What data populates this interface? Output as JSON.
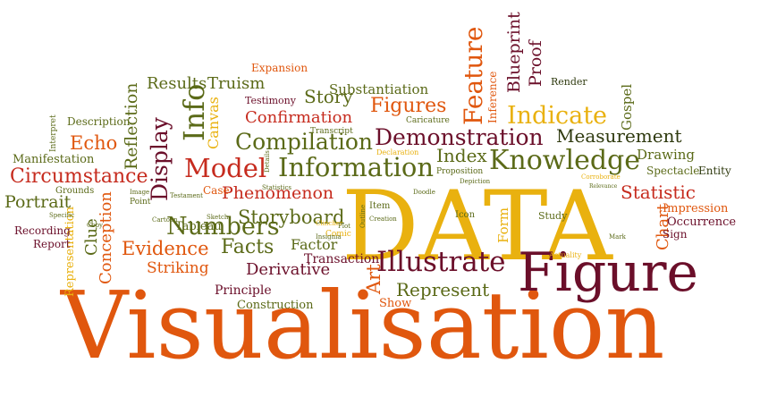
{
  "colors": {
    "orange": "#e0570e",
    "red": "#c62b1e",
    "gold": "#e9b10f",
    "olive": "#5b6a18",
    "maroon": "#6b0f2a",
    "dark": "#2f3a0f"
  },
  "words": [
    {
      "text": "Visualisation",
      "color": "orange"
    },
    {
      "text": "DATA",
      "color": "gold"
    },
    {
      "text": "Figure",
      "color": "maroon"
    },
    {
      "text": "Illustrate",
      "color": "maroon"
    },
    {
      "text": "Knowledge",
      "color": "olive"
    },
    {
      "text": "Information",
      "color": "olive"
    },
    {
      "text": "Demonstration",
      "color": "maroon"
    },
    {
      "text": "Model",
      "color": "red"
    },
    {
      "text": "Indicate",
      "color": "gold"
    },
    {
      "text": "Feature",
      "color": "orange"
    },
    {
      "text": "Blueprint",
      "color": "maroon"
    },
    {
      "text": "Proof",
      "color": "maroon"
    },
    {
      "text": "Measurement",
      "color": "dark"
    },
    {
      "text": "Compilation",
      "color": "olive"
    },
    {
      "text": "Numbers",
      "color": "olive"
    },
    {
      "text": "Facts",
      "color": "olive"
    },
    {
      "text": "Evidence",
      "color": "orange"
    },
    {
      "text": "Storyboard",
      "color": "olive"
    },
    {
      "text": "Phenomenon",
      "color": "red"
    },
    {
      "text": "Statistic",
      "color": "red"
    },
    {
      "text": "Represent",
      "color": "olive"
    },
    {
      "text": "Derivative",
      "color": "maroon"
    },
    {
      "text": "Striking",
      "color": "orange"
    },
    {
      "text": "Circumstance",
      "color": "red"
    },
    {
      "text": "Info",
      "color": "olive"
    },
    {
      "text": "Display",
      "color": "maroon"
    },
    {
      "text": "Reflection",
      "color": "olive"
    },
    {
      "text": "Echo",
      "color": "orange"
    },
    {
      "text": "Figures",
      "color": "orange"
    },
    {
      "text": "Story",
      "color": "olive"
    },
    {
      "text": "Confirmation",
      "color": "red"
    },
    {
      "text": "Results",
      "color": "olive"
    },
    {
      "text": "Truism",
      "color": "olive"
    },
    {
      "text": "Substantiation",
      "color": "olive"
    },
    {
      "text": "Portrait",
      "color": "olive"
    },
    {
      "text": "Conception",
      "color": "orange"
    },
    {
      "text": "Clue",
      "color": "olive"
    },
    {
      "text": "Representation",
      "color": "gold"
    },
    {
      "text": "Canvas",
      "color": "gold"
    },
    {
      "text": "Tableau",
      "color": "olive"
    },
    {
      "text": "Factor",
      "color": "olive"
    },
    {
      "text": "Transaction",
      "color": "maroon"
    },
    {
      "text": "Principle",
      "color": "maroon"
    },
    {
      "text": "Construction",
      "color": "olive"
    },
    {
      "text": "Show",
      "color": "orange"
    },
    {
      "text": "Art",
      "color": "orange"
    },
    {
      "text": "Index",
      "color": "olive"
    },
    {
      "text": "Form",
      "color": "gold"
    },
    {
      "text": "Chart",
      "color": "orange"
    },
    {
      "text": "Gospel",
      "color": "olive"
    },
    {
      "text": "Inference",
      "color": "orange"
    },
    {
      "text": "Drawing",
      "color": "olive"
    },
    {
      "text": "Spectacle",
      "color": "olive"
    },
    {
      "text": "Entity",
      "color": "dark"
    },
    {
      "text": "Impression",
      "color": "orange"
    },
    {
      "text": "Occurrence",
      "color": "maroon"
    },
    {
      "text": "Sign",
      "color": "maroon"
    },
    {
      "text": "Manifestation",
      "color": "olive"
    },
    {
      "text": "Description",
      "color": "olive"
    },
    {
      "text": "Recording",
      "color": "maroon"
    },
    {
      "text": "Report",
      "color": "maroon"
    },
    {
      "text": "Grounds",
      "color": "olive"
    },
    {
      "text": "Expansion",
      "color": "orange"
    },
    {
      "text": "Testimony",
      "color": "maroon"
    },
    {
      "text": "Caricature",
      "color": "olive"
    },
    {
      "text": "Transcript",
      "color": "olive"
    },
    {
      "text": "Render",
      "color": "dark"
    },
    {
      "text": "Proposition",
      "color": "olive"
    },
    {
      "text": "Study",
      "color": "olive"
    },
    {
      "text": "Item",
      "color": "olive"
    },
    {
      "text": "Icon",
      "color": "olive"
    },
    {
      "text": "Case",
      "color": "orange"
    },
    {
      "text": "Point",
      "color": "olive"
    },
    {
      "text": "Comic",
      "color": "gold"
    },
    {
      "text": "Actuality",
      "color": "gold"
    },
    {
      "text": "Declaration",
      "color": "gold"
    },
    {
      "text": "Interpret",
      "color": "olive"
    },
    {
      "text": "Doodle",
      "color": "olive"
    },
    {
      "text": "Depiction",
      "color": "olive"
    },
    {
      "text": "Corroborate",
      "color": "gold"
    },
    {
      "text": "Mark",
      "color": "olive"
    },
    {
      "text": "Statistics",
      "color": "olive"
    },
    {
      "text": "Image",
      "color": "olive"
    },
    {
      "text": "Specific",
      "color": "olive"
    },
    {
      "text": "Sketch",
      "color": "olive"
    },
    {
      "text": "Cartoon",
      "color": "olive"
    },
    {
      "text": "Clincher",
      "color": "gold"
    },
    {
      "text": "Plot",
      "color": "olive"
    },
    {
      "text": "Insignia",
      "color": "olive"
    },
    {
      "text": "Creation",
      "color": "olive"
    },
    {
      "text": "Outline",
      "color": "olive"
    },
    {
      "text": "Copy",
      "color": "olive"
    },
    {
      "text": "Details",
      "color": "olive"
    },
    {
      "text": "Testament",
      "color": "olive"
    },
    {
      "text": "Relevance",
      "color": "olive"
    }
  ]
}
